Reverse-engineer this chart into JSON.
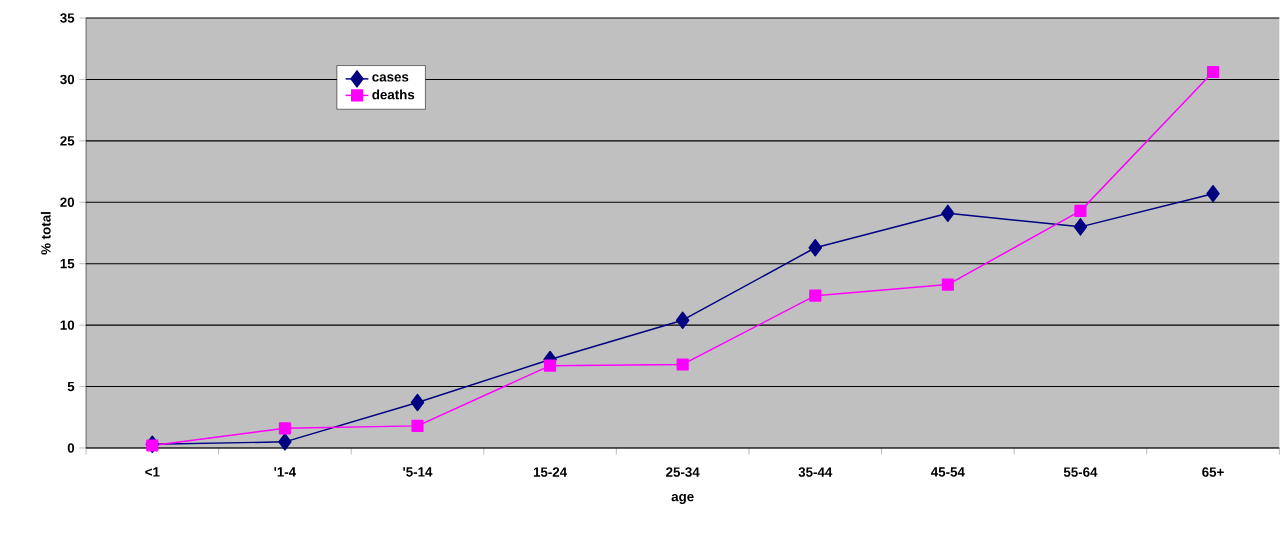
{
  "chart_data": {
    "type": "line",
    "xlabel": "age",
    "ylabel": "% total",
    "categories": [
      "<1",
      "'1-4",
      "'5-14",
      "15-24",
      "25-34",
      "35-44",
      "45-54",
      "55-64",
      "65+"
    ],
    "series": [
      {
        "name": "cases",
        "color": "#000080",
        "marker": "diamond",
        "values": [
          0.3,
          0.5,
          3.7,
          7.2,
          10.4,
          16.3,
          19.1,
          18.0,
          20.7
        ]
      },
      {
        "name": "deaths",
        "color": "#ff00ff",
        "marker": "square",
        "values": [
          0.2,
          1.6,
          1.8,
          6.7,
          6.8,
          12.4,
          13.3,
          19.3,
          30.6
        ]
      }
    ],
    "ylim": [
      0,
      35
    ],
    "yticks": [
      0,
      5,
      10,
      15,
      20,
      25,
      30,
      35
    ],
    "grid": "y",
    "legend": "top left",
    "line_style": "solid"
  }
}
